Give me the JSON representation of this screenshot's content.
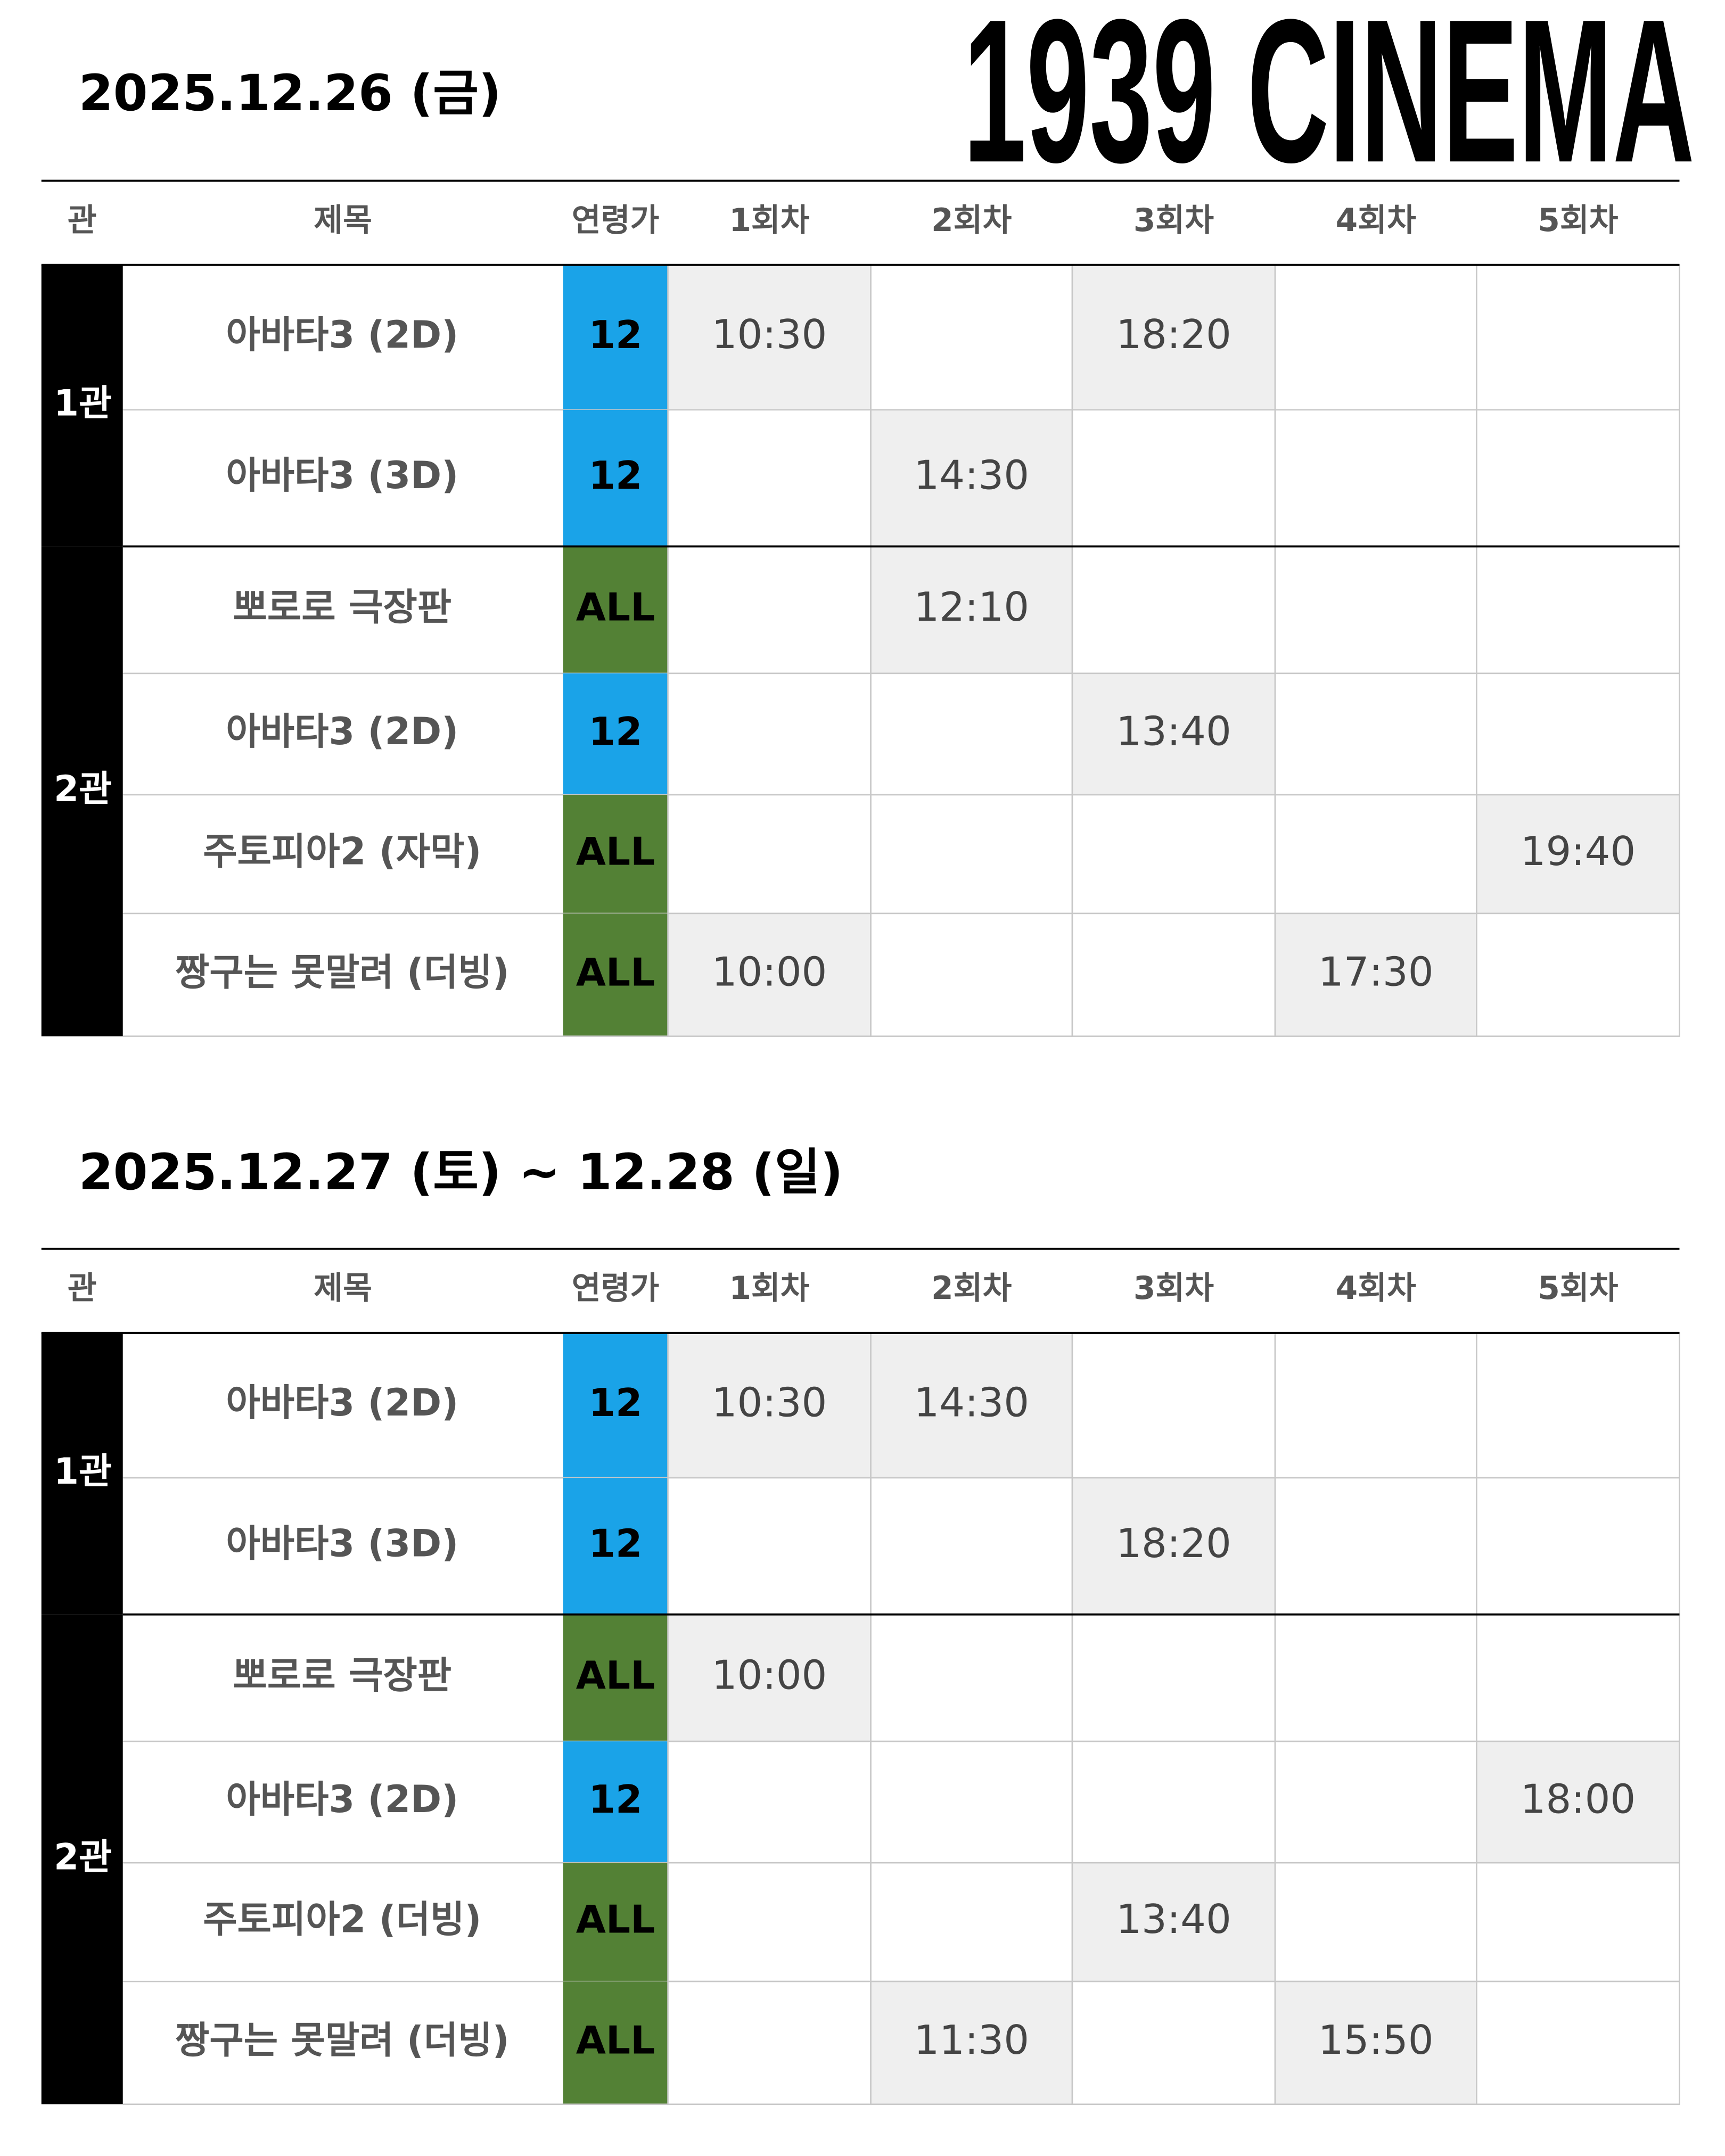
{
  "header": {
    "title": "1939 CINEMA"
  },
  "age_colors": {
    "12": "#1aa3e8",
    "ALL": "#538135"
  },
  "schedules": [
    {
      "date": "2025.12.26 (금)",
      "columns": [
        "관",
        "제목",
        "연령가",
        "1회차",
        "2회차",
        "3회차",
        "4회차",
        "5회차"
      ],
      "halls": [
        {
          "name": "1관",
          "rows": [
            {
              "title": "아바타3 (2D)",
              "age": "12",
              "times": [
                "10:30",
                null,
                "18:20",
                null,
                null
              ]
            },
            {
              "title": "아바타3 (3D)",
              "age": "12",
              "times": [
                null,
                "14:30",
                null,
                null,
                null
              ]
            }
          ]
        },
        {
          "name": "2관",
          "rows": [
            {
              "title": "뽀로로 극장판",
              "age": "ALL",
              "times": [
                null,
                "12:10",
                null,
                null,
                null
              ]
            },
            {
              "title": "아바타3 (2D)",
              "age": "12",
              "times": [
                null,
                null,
                "13:40",
                null,
                null
              ]
            },
            {
              "title": "주토피아2 (자막)",
              "age": "ALL",
              "times": [
                null,
                null,
                null,
                null,
                "19:40"
              ]
            },
            {
              "title": "짱구는 못말려 (더빙)",
              "age": "ALL",
              "times": [
                "10:00",
                null,
                null,
                "17:30",
                null
              ]
            }
          ]
        }
      ]
    },
    {
      "date": "2025.12.27 (토) ~ 12.28 (일)",
      "columns": [
        "관",
        "제목",
        "연령가",
        "1회차",
        "2회차",
        "3회차",
        "4회차",
        "5회차"
      ],
      "halls": [
        {
          "name": "1관",
          "rows": [
            {
              "title": "아바타3 (2D)",
              "age": "12",
              "times": [
                "10:30",
                "14:30",
                null,
                null,
                null
              ]
            },
            {
              "title": "아바타3 (3D)",
              "age": "12",
              "times": [
                null,
                null,
                "18:20",
                null,
                null
              ]
            }
          ]
        },
        {
          "name": "2관",
          "rows": [
            {
              "title": "뽀로로 극장판",
              "age": "ALL",
              "times": [
                "10:00",
                null,
                null,
                null,
                null
              ]
            },
            {
              "title": "아바타3 (2D)",
              "age": "12",
              "times": [
                null,
                null,
                null,
                null,
                "18:00"
              ]
            },
            {
              "title": "주토피아2 (더빙)",
              "age": "ALL",
              "times": [
                null,
                null,
                "13:40",
                null,
                null
              ]
            },
            {
              "title": "짱구는 못말려 (더빙)",
              "age": "ALL",
              "times": [
                null,
                "11:30",
                null,
                "15:50",
                null
              ]
            }
          ]
        }
      ]
    }
  ]
}
